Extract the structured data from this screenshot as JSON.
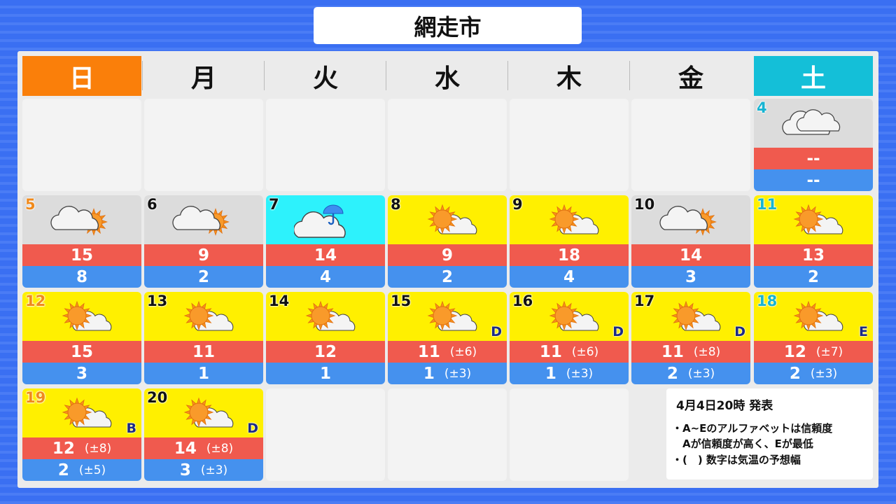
{
  "title": "網走市",
  "weekdays": [
    "日",
    "月",
    "火",
    "水",
    "木",
    "金",
    "土"
  ],
  "colors": {
    "sunday": "#fa7f0a",
    "saturday": "#14bfd8",
    "high": "#f05a4e",
    "low": "#4591ee",
    "sunny_bg": "#fff000",
    "cloudy_bg": "#dcdcdc",
    "rain_bg": "#2df2fc"
  },
  "days": [
    {
      "date": "4",
      "col": 6,
      "row": 0,
      "weather": "cloudy",
      "high": "--",
      "low": "--"
    },
    {
      "date": "5",
      "col": 0,
      "row": 1,
      "weather": "cloudy-then-sunny",
      "high": "15",
      "low": "8"
    },
    {
      "date": "6",
      "col": 1,
      "row": 1,
      "weather": "cloudy-then-sunny",
      "high": "9",
      "low": "2"
    },
    {
      "date": "7",
      "col": 2,
      "row": 1,
      "weather": "cloudy-with-rain",
      "high": "14",
      "low": "4"
    },
    {
      "date": "8",
      "col": 3,
      "row": 1,
      "weather": "sunny-then-cloudy",
      "high": "9",
      "low": "2"
    },
    {
      "date": "9",
      "col": 4,
      "row": 1,
      "weather": "sunny-then-cloudy",
      "high": "18",
      "low": "4"
    },
    {
      "date": "10",
      "col": 5,
      "row": 1,
      "weather": "cloudy-then-sunny",
      "high": "14",
      "low": "3"
    },
    {
      "date": "11",
      "col": 6,
      "row": 1,
      "weather": "sunny-then-cloudy",
      "high": "13",
      "low": "2"
    },
    {
      "date": "12",
      "col": 0,
      "row": 2,
      "weather": "sunny-then-cloudy",
      "high": "15",
      "low": "3"
    },
    {
      "date": "13",
      "col": 1,
      "row": 2,
      "weather": "sunny-then-cloudy",
      "high": "11",
      "low": "1"
    },
    {
      "date": "14",
      "col": 2,
      "row": 2,
      "weather": "sunny-then-cloudy",
      "high": "12",
      "low": "1"
    },
    {
      "date": "15",
      "col": 3,
      "row": 2,
      "weather": "sunny-then-cloudy",
      "high": "11",
      "high_range": "(±6)",
      "low": "1",
      "low_range": "(±3)",
      "reliability": "D"
    },
    {
      "date": "16",
      "col": 4,
      "row": 2,
      "weather": "sunny-then-cloudy",
      "high": "11",
      "high_range": "(±6)",
      "low": "1",
      "low_range": "(±3)",
      "reliability": "D"
    },
    {
      "date": "17",
      "col": 5,
      "row": 2,
      "weather": "sunny-then-cloudy",
      "high": "11",
      "high_range": "(±8)",
      "low": "2",
      "low_range": "(±3)",
      "reliability": "D"
    },
    {
      "date": "18",
      "col": 6,
      "row": 2,
      "weather": "sunny-then-cloudy",
      "high": "12",
      "high_range": "(±7)",
      "low": "2",
      "low_range": "(±3)",
      "reliability": "E"
    },
    {
      "date": "19",
      "col": 0,
      "row": 3,
      "weather": "sunny-then-cloudy",
      "high": "12",
      "high_range": "(±8)",
      "low": "2",
      "low_range": "(±5)",
      "reliability": "B"
    },
    {
      "date": "20",
      "col": 1,
      "row": 3,
      "weather": "sunny-then-cloudy",
      "high": "14",
      "high_range": "(±8)",
      "low": "3",
      "low_range": "(±3)",
      "reliability": "D"
    }
  ],
  "note": {
    "published": "4月4日20時 発表",
    "lines": [
      "・A~Eのアルファベットは信頼度",
      "　Aが信頼度が高く、Eが最低",
      "・(　) 数字は気温の予想幅"
    ]
  }
}
